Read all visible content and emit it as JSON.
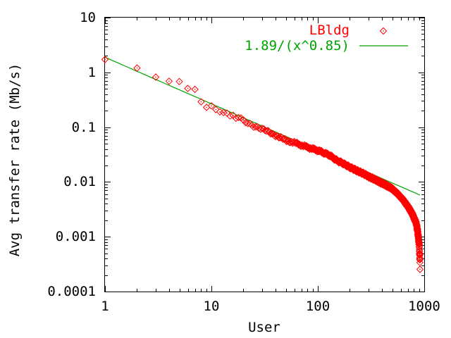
{
  "chart_data": {
    "type": "scatter",
    "title": "",
    "xlabel": "User",
    "ylabel": "Avg transfer rate (Mb/s)",
    "x_scale": "log",
    "y_scale": "log",
    "xlim": [
      1,
      1000
    ],
    "ylim": [
      0.0001,
      10
    ],
    "x_ticks": [
      "1",
      "10",
      "100",
      "1000"
    ],
    "y_ticks": [
      "10",
      "1",
      "0.1",
      "0.01",
      "0.001",
      "0.0001"
    ],
    "grid": false,
    "legend_position": "top-right-inside",
    "series": [
      {
        "name": "LBldg",
        "type": "points",
        "marker": "open-diamond-with-dot",
        "color": "#ff0000",
        "sampling": {
          "integer_x_from": 1,
          "integer_x_to": 912
        },
        "anchor_points": [
          [
            1,
            1.72
          ],
          [
            2,
            1.2
          ],
          [
            3,
            0.82
          ],
          [
            4,
            0.69
          ],
          [
            5,
            0.68
          ],
          [
            6,
            0.51
          ],
          [
            7,
            0.49
          ],
          [
            8,
            0.29
          ],
          [
            9,
            0.23
          ],
          [
            10,
            0.245
          ],
          [
            11,
            0.21
          ],
          [
            12,
            0.19
          ],
          [
            13,
            0.185
          ],
          [
            14,
            0.18
          ],
          [
            15,
            0.16
          ],
          [
            16,
            0.165
          ],
          [
            17,
            0.145
          ],
          [
            18,
            0.15
          ],
          [
            20,
            0.13
          ],
          [
            22,
            0.118
          ],
          [
            25,
            0.106
          ],
          [
            28,
            0.098
          ],
          [
            30,
            0.092
          ],
          [
            35,
            0.08
          ],
          [
            40,
            0.071
          ],
          [
            45,
            0.064
          ],
          [
            50,
            0.057
          ],
          [
            55,
            0.055
          ],
          [
            60,
            0.052
          ],
          [
            70,
            0.047
          ],
          [
            80,
            0.043
          ],
          [
            90,
            0.04
          ],
          [
            100,
            0.0376
          ],
          [
            110,
            0.035
          ],
          [
            120,
            0.0325
          ],
          [
            130,
            0.0305
          ],
          [
            150,
            0.0248
          ],
          [
            170,
            0.0222
          ],
          [
            200,
            0.0185
          ],
          [
            230,
            0.0163
          ],
          [
            260,
            0.0146
          ],
          [
            300,
            0.0126
          ],
          [
            340,
            0.0112
          ],
          [
            380,
            0.01
          ],
          [
            420,
            0.0091
          ],
          [
            460,
            0.0083
          ],
          [
            500,
            0.0075
          ],
          [
            550,
            0.0063
          ],
          [
            600,
            0.0053
          ],
          [
            650,
            0.0044
          ],
          [
            700,
            0.0036
          ],
          [
            750,
            0.0029
          ],
          [
            780,
            0.0025
          ],
          [
            810,
            0.0021
          ],
          [
            830,
            0.0019
          ],
          [
            850,
            0.0016
          ],
          [
            865,
            0.0013
          ],
          [
            880,
            0.001
          ],
          [
            890,
            0.00082
          ],
          [
            898,
            0.00065
          ],
          [
            904,
            0.00052
          ],
          [
            908,
            0.00042
          ],
          [
            911,
            0.00033
          ],
          [
            912,
            0.00026
          ]
        ]
      },
      {
        "name": "1.89/(x^0.85)",
        "type": "line",
        "color": "#00a400",
        "a": 1.89,
        "b": 0.85,
        "x_range": [
          1,
          912
        ]
      }
    ],
    "colors": {
      "background": "#ffffff",
      "axis": "#000000",
      "marker_red": "#ff0000",
      "fit_green": "#00a400"
    }
  }
}
